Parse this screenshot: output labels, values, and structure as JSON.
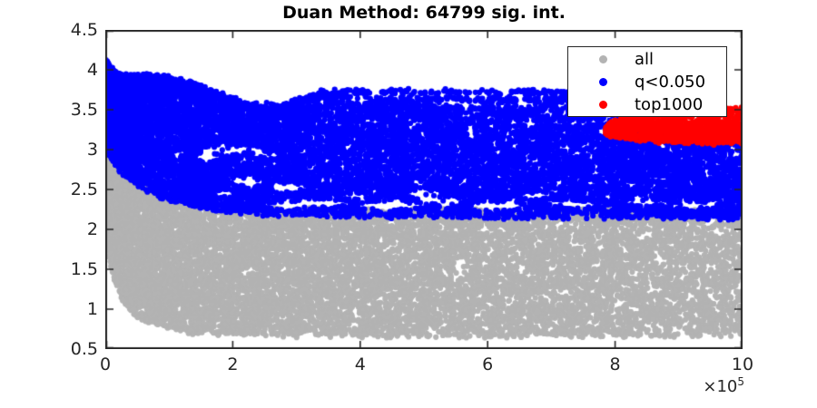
{
  "figure": {
    "title": "Duan Method: 64799 sig. int."
  },
  "axes": {
    "x_tick_labels": [
      "0",
      "2",
      "4",
      "6",
      "8",
      "10"
    ],
    "y_tick_labels": [
      "4.5",
      "4",
      "3.5",
      "3",
      "2.5",
      "2",
      "1.5",
      "1",
      "0.5"
    ],
    "x_multiplier_base": "×10",
    "x_multiplier_exp": "5",
    "axis_color": "#262626"
  },
  "legend": {
    "items": [
      {
        "label": "all",
        "color": "#b3b3b3"
      },
      {
        "label": "q<0.050",
        "color": "#0000ff"
      },
      {
        "label": "top1000",
        "color": "#ff0000"
      }
    ]
  },
  "chart_data": {
    "type": "scatter",
    "title": "Duan Method: 64799 sig. int.",
    "significant_interactions_count": 64799,
    "xlabel": "",
    "ylabel": "",
    "xlim": [
      0,
      1000000
    ],
    "ylim": [
      0.5,
      4.5
    ],
    "x_tick_values_1e5": [
      0,
      2,
      4,
      6,
      8,
      10
    ],
    "y_tick_values": [
      4.5,
      4,
      3.5,
      3,
      2.5,
      2,
      1.5,
      1,
      0.5
    ],
    "x_unit": 100000,
    "grid": false,
    "legend_position": "upper right inside",
    "seed": 1337,
    "edge_jitter": 0.05,
    "hole_reject_prob": 0.94,
    "series": [
      {
        "name": "all",
        "color": "#b3b3b3",
        "marker_radius_px": 3.1,
        "n_points": 12000,
        "x_pow": 1.5,
        "x_range": [
          0,
          10
        ],
        "upper": [
          [
            0,
            4.02
          ],
          [
            0.12,
            3.45
          ],
          [
            0.3,
            2.98
          ],
          [
            0.6,
            2.62
          ],
          [
            1.0,
            2.42
          ],
          [
            1.6,
            2.3
          ],
          [
            2.5,
            2.26
          ],
          [
            10,
            2.24
          ]
        ],
        "lower": [
          [
            0,
            1.9
          ],
          [
            0.12,
            1.42
          ],
          [
            0.3,
            1.06
          ],
          [
            0.55,
            0.88
          ],
          [
            0.9,
            0.76
          ],
          [
            1.4,
            0.7
          ],
          [
            2.5,
            0.67
          ],
          [
            6,
            0.66
          ],
          [
            10,
            0.66
          ]
        ]
      },
      {
        "name": "q<0.050",
        "color": "#0000ff",
        "marker_radius_px": 3.1,
        "n_points": 13500,
        "x_pow": 1.35,
        "x_range": [
          0,
          10
        ],
        "upper": [
          [
            0,
            4.16
          ],
          [
            0.08,
            4.02
          ],
          [
            0.3,
            3.94
          ],
          [
            0.95,
            3.93
          ],
          [
            1.25,
            3.86
          ],
          [
            1.6,
            3.78
          ],
          [
            1.95,
            3.66
          ],
          [
            2.3,
            3.58
          ],
          [
            2.7,
            3.56
          ],
          [
            3.0,
            3.66
          ],
          [
            3.4,
            3.74
          ],
          [
            7.7,
            3.74
          ],
          [
            7.95,
            3.5
          ],
          [
            8.15,
            3.28
          ],
          [
            8.6,
            3.22
          ],
          [
            10,
            3.22
          ]
        ],
        "lower": [
          [
            0,
            3.0
          ],
          [
            0.25,
            2.7
          ],
          [
            0.5,
            2.55
          ],
          [
            1.0,
            2.36
          ],
          [
            1.6,
            2.25
          ],
          [
            2.6,
            2.18
          ],
          [
            4.5,
            2.15
          ],
          [
            10,
            2.14
          ]
        ]
      },
      {
        "name": "top1000",
        "color": "#ff0000",
        "marker_radius_px": 3.0,
        "n_points": 1300,
        "x_pow": 1.0,
        "x_range": [
          7.85,
          10
        ],
        "upper": [
          [
            7.85,
            3.3
          ],
          [
            8.1,
            3.4
          ],
          [
            8.5,
            3.44
          ],
          [
            9.0,
            3.47
          ],
          [
            9.5,
            3.5
          ],
          [
            10,
            3.53
          ]
        ],
        "lower": [
          [
            7.85,
            3.19
          ],
          [
            8.2,
            3.14
          ],
          [
            8.7,
            3.1
          ],
          [
            9.3,
            3.07
          ],
          [
            10,
            3.08
          ]
        ]
      }
    ],
    "holes": [
      [
        2.0,
        3.0,
        0.5,
        0.06
      ],
      [
        2.5,
        2.93,
        0.22,
        0.045
      ],
      [
        1.6,
        2.9,
        0.18,
        0.05
      ],
      [
        2.2,
        2.6,
        0.3,
        0.05
      ],
      [
        2.9,
        2.52,
        0.28,
        0.05
      ],
      [
        1.9,
        2.45,
        0.2,
        0.04
      ],
      [
        5.1,
        3.68,
        1.55,
        0.022
      ],
      [
        6.95,
        3.68,
        0.35,
        0.02
      ],
      [
        7.55,
        3.69,
        0.25,
        0.018
      ],
      [
        4.0,
        3.62,
        0.25,
        0.02
      ],
      [
        5.6,
        3.575,
        0.55,
        0.022
      ],
      [
        6.6,
        3.57,
        0.3,
        0.022
      ],
      [
        7.3,
        3.57,
        0.25,
        0.025
      ],
      [
        7.85,
        3.56,
        0.2,
        0.03
      ],
      [
        6.6,
        3.33,
        0.28,
        0.02
      ],
      [
        7.4,
        3.33,
        0.3,
        0.02
      ],
      [
        3.4,
        2.33,
        0.45,
        0.05
      ],
      [
        4.5,
        2.3,
        0.5,
        0.055
      ],
      [
        5.3,
        2.36,
        0.35,
        0.045
      ],
      [
        6.15,
        2.29,
        0.45,
        0.05
      ],
      [
        7.3,
        2.32,
        0.4,
        0.04
      ],
      [
        5.0,
        2.44,
        0.3,
        0.04
      ],
      [
        2.85,
        2.3,
        0.3,
        0.045
      ],
      [
        9.2,
        2.3,
        0.4,
        0.045
      ],
      [
        8.5,
        2.34,
        0.3,
        0.035
      ],
      [
        6.7,
        2.42,
        0.25,
        0.035
      ],
      [
        3.9,
        2.42,
        0.25,
        0.03
      ],
      [
        9.05,
        3.385,
        1.0,
        0.018
      ]
    ]
  }
}
